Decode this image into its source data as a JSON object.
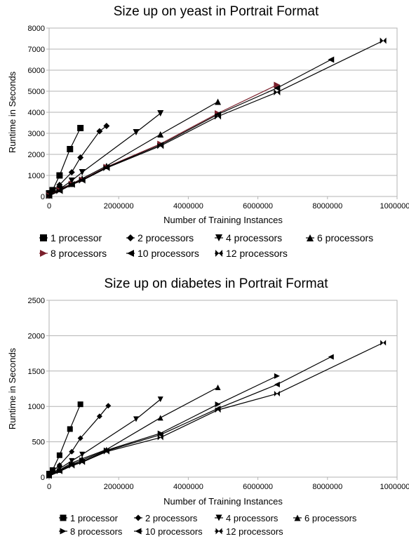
{
  "chart_data": [
    {
      "type": "line",
      "title": "Size up on yeast in Portrait Format",
      "xlabel": "Number of Training Instances",
      "ylabel": "Runtime in Seconds",
      "xlim": [
        0,
        10000000
      ],
      "ylim": [
        0,
        8000
      ],
      "x_ticks": [
        "0",
        "2000000",
        "4000000",
        "6000000",
        "8000000",
        "10000000"
      ],
      "y_ticks": [
        "0",
        "1000",
        "2000",
        "3000",
        "4000",
        "5000",
        "6000",
        "7000",
        "8000"
      ],
      "grid": "horizontal",
      "legend_position": "bottom",
      "series": [
        {
          "name": "1 processor",
          "marker": "square",
          "color": "#000000",
          "points": [
            [
              0,
              150
            ],
            [
              100000,
              300
            ],
            [
              300000,
              1000
            ],
            [
              600000,
              2250
            ],
            [
              900000,
              3250
            ]
          ]
        },
        {
          "name": "2 processors",
          "marker": "diamond",
          "color": "#000000",
          "points": [
            [
              0,
              100
            ],
            [
              300000,
              550
            ],
            [
              650000,
              1150
            ],
            [
              900000,
              1850
            ],
            [
              1450000,
              3100
            ],
            [
              1650000,
              3350
            ]
          ]
        },
        {
          "name": "4 processors",
          "marker": "triangle-down",
          "color": "#000000",
          "points": [
            [
              0,
              80
            ],
            [
              300000,
              350
            ],
            [
              650000,
              750
            ],
            [
              950000,
              1150
            ],
            [
              2500000,
              3050
            ],
            [
              3200000,
              3950
            ]
          ]
        },
        {
          "name": "6 processors",
          "marker": "triangle-up",
          "color": "#000000",
          "points": [
            [
              0,
              60
            ],
            [
              300000,
              350
            ],
            [
              650000,
              600
            ],
            [
              950000,
              850
            ],
            [
              1650000,
              1450
            ],
            [
              3200000,
              2950
            ],
            [
              4850000,
              4500
            ]
          ]
        },
        {
          "name": "8 processors",
          "marker": "triangle-right",
          "color": "#7a1f2b",
          "points": [
            [
              0,
              50
            ],
            [
              300000,
              300
            ],
            [
              650000,
              600
            ],
            [
              950000,
              800
            ],
            [
              1650000,
              1400
            ],
            [
              3200000,
              2500
            ],
            [
              4850000,
              3950
            ],
            [
              6550000,
              5300
            ]
          ]
        },
        {
          "name": "10 processors",
          "marker": "triangle-left",
          "color": "#000000",
          "points": [
            [
              0,
              40
            ],
            [
              300000,
              280
            ],
            [
              650000,
              580
            ],
            [
              950000,
              780
            ],
            [
              1650000,
              1380
            ],
            [
              3200000,
              2450
            ],
            [
              4850000,
              3900
            ],
            [
              6550000,
              5150
            ],
            [
              8100000,
              6500
            ]
          ]
        },
        {
          "name": "12 processors",
          "marker": "bowtie",
          "color": "#000000",
          "points": [
            [
              0,
              30
            ],
            [
              300000,
              260
            ],
            [
              650000,
              560
            ],
            [
              950000,
              760
            ],
            [
              1650000,
              1350
            ],
            [
              3200000,
              2400
            ],
            [
              4850000,
              3800
            ],
            [
              6550000,
              4950
            ],
            [
              9600000,
              7400
            ]
          ]
        }
      ]
    },
    {
      "type": "line",
      "title": "Size up on diabetes in Portrait Format",
      "xlabel": "Number of Training Instances",
      "ylabel": "Runtime in Seconds",
      "xlim": [
        0,
        10000000
      ],
      "ylim": [
        0,
        2500
      ],
      "x_ticks": [
        "0",
        "2000000",
        "4000000",
        "6000000",
        "8000000",
        "10000000"
      ],
      "y_ticks": [
        "0",
        "500",
        "1000",
        "1500",
        "2000",
        "2500"
      ],
      "grid": "horizontal",
      "legend_position": "bottom",
      "series": [
        {
          "name": "1 processor",
          "marker": "square",
          "color": "#000000",
          "points": [
            [
              0,
              50
            ],
            [
              100000,
              100
            ],
            [
              300000,
              310
            ],
            [
              600000,
              680
            ],
            [
              900000,
              1030
            ]
          ]
        },
        {
          "name": "2 processors",
          "marker": "diamond",
          "color": "#000000",
          "points": [
            [
              0,
              40
            ],
            [
              300000,
              170
            ],
            [
              650000,
              360
            ],
            [
              900000,
              550
            ],
            [
              1450000,
              860
            ],
            [
              1700000,
              1010
            ]
          ]
        },
        {
          "name": "4 processors",
          "marker": "triangle-down",
          "color": "#000000",
          "points": [
            [
              0,
              30
            ],
            [
              300000,
              120
            ],
            [
              650000,
              230
            ],
            [
              950000,
              320
            ],
            [
              2500000,
              820
            ],
            [
              3200000,
              1100
            ]
          ]
        },
        {
          "name": "6 processors",
          "marker": "triangle-up",
          "color": "#000000",
          "points": [
            [
              0,
              25
            ],
            [
              300000,
              100
            ],
            [
              650000,
              200
            ],
            [
              950000,
              260
            ],
            [
              1650000,
              390
            ],
            [
              3200000,
              840
            ],
            [
              4850000,
              1270
            ]
          ]
        },
        {
          "name": "8 processors",
          "marker": "triangle-right",
          "color": "#000000",
          "points": [
            [
              0,
              20
            ],
            [
              300000,
              90
            ],
            [
              650000,
              180
            ],
            [
              950000,
              240
            ],
            [
              1650000,
              380
            ],
            [
              3200000,
              620
            ],
            [
              4850000,
              1030
            ],
            [
              6550000,
              1430
            ]
          ]
        },
        {
          "name": "10 processors",
          "marker": "triangle-left",
          "color": "#000000",
          "points": [
            [
              0,
              18
            ],
            [
              300000,
              85
            ],
            [
              650000,
              170
            ],
            [
              950000,
              220
            ],
            [
              1650000,
              370
            ],
            [
              3200000,
              600
            ],
            [
              4850000,
              970
            ],
            [
              6550000,
              1310
            ],
            [
              8100000,
              1700
            ]
          ]
        },
        {
          "name": "12 processors",
          "marker": "bowtie",
          "color": "#000000",
          "points": [
            [
              0,
              15
            ],
            [
              300000,
              80
            ],
            [
              650000,
              160
            ],
            [
              950000,
              210
            ],
            [
              1650000,
              360
            ],
            [
              3200000,
              560
            ],
            [
              4850000,
              950
            ],
            [
              6550000,
              1180
            ],
            [
              9600000,
              1900
            ]
          ]
        }
      ]
    }
  ]
}
